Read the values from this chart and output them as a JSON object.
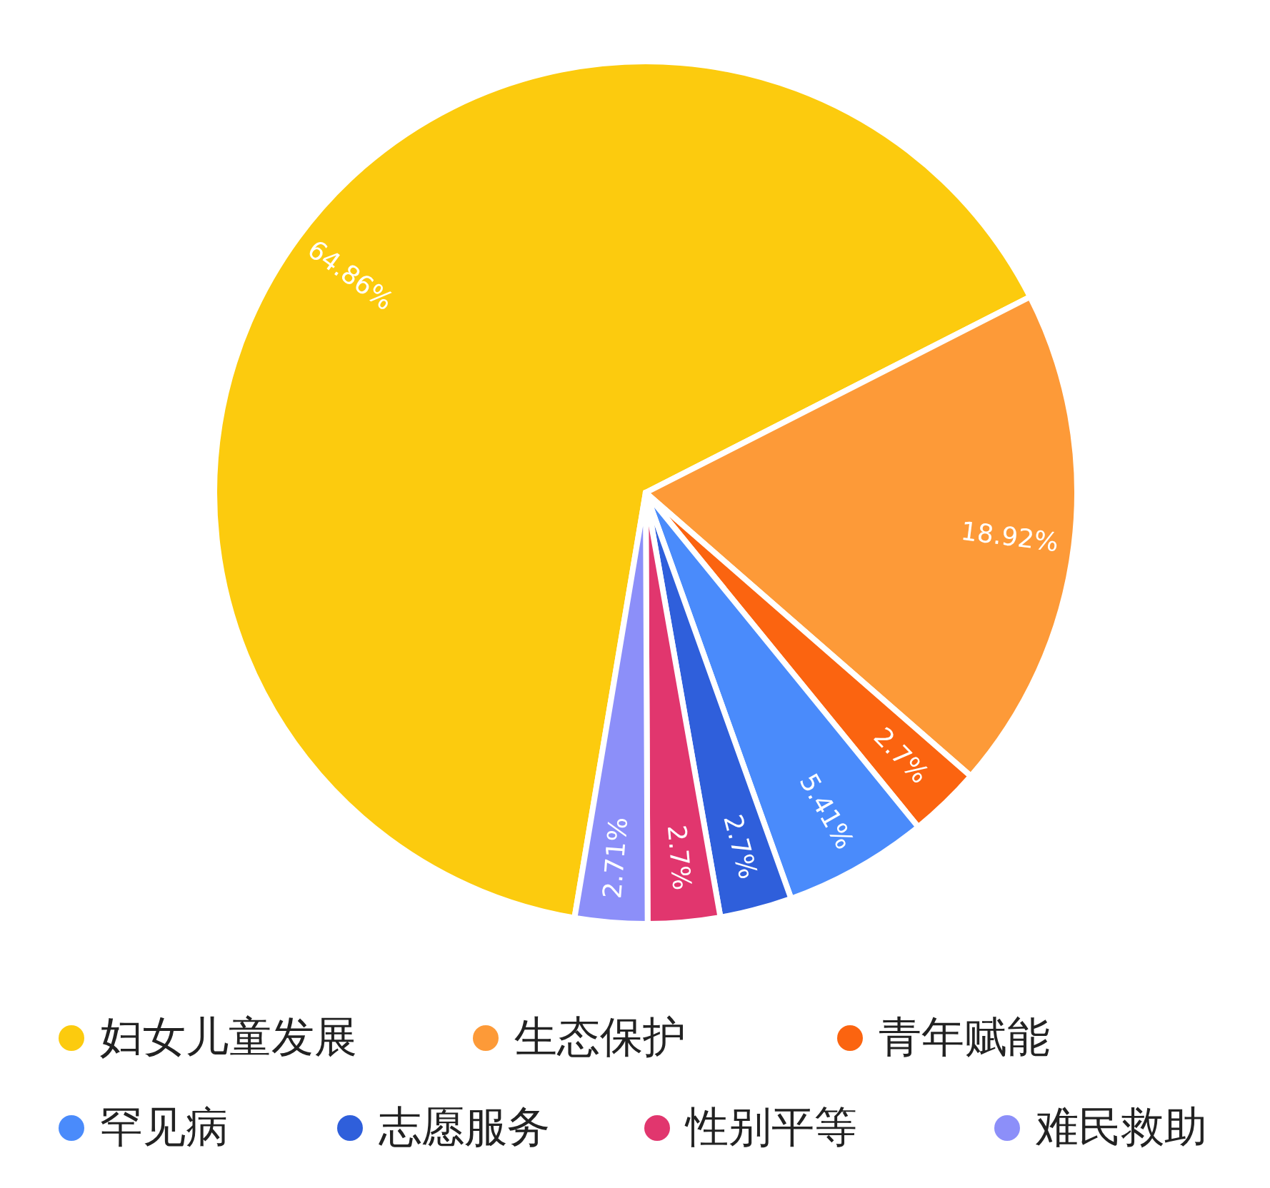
{
  "chart_data": {
    "type": "pie",
    "categories": [
      "妇女儿童发展",
      "生态保护",
      "青年赋能",
      "罕见病",
      "志愿服务",
      "性别平等",
      "难民救助"
    ],
    "values": [
      64.86,
      18.92,
      2.7,
      5.41,
      2.7,
      2.7,
      2.71
    ],
    "value_labels": [
      "64.86%",
      "18.92%",
      "2.7%",
      "5.41%",
      "2.7%",
      "2.7%",
      "2.71%"
    ],
    "colors": [
      "#fccb0e",
      "#fd9a38",
      "#fb6410",
      "#4a8bfb",
      "#2f5fdb",
      "#e1366e",
      "#8c8ff9"
    ],
    "legend": "bottom"
  }
}
